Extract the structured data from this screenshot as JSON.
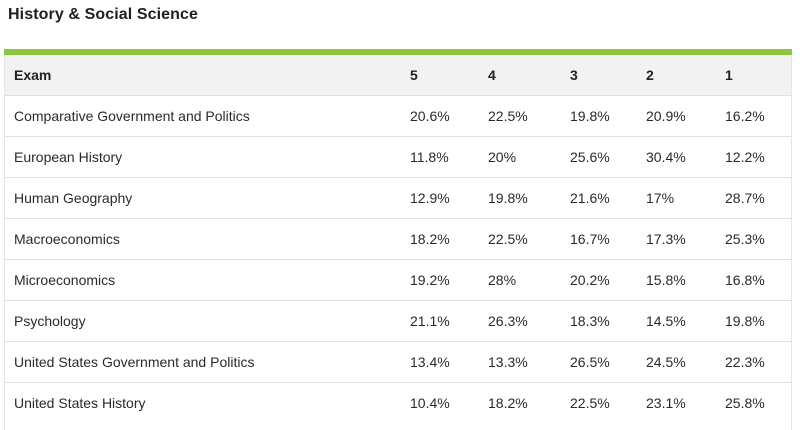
{
  "section": {
    "title": "History & Social Science",
    "accent_color": "#8dc63f"
  },
  "table": {
    "headers": [
      "Exam",
      "5",
      "4",
      "3",
      "2",
      "1"
    ],
    "rows": [
      {
        "exam": "Comparative Government and Politics",
        "s5": "20.6%",
        "s4": "22.5%",
        "s3": "19.8%",
        "s2": "20.9%",
        "s1": "16.2%"
      },
      {
        "exam": "European History",
        "s5": "11.8%",
        "s4": "20%",
        "s3": "25.6%",
        "s2": "30.4%",
        "s1": "12.2%"
      },
      {
        "exam": "Human Geography",
        "s5": "12.9%",
        "s4": "19.8%",
        "s3": "21.6%",
        "s2": "17%",
        "s1": "28.7%"
      },
      {
        "exam": "Macroeconomics",
        "s5": "18.2%",
        "s4": "22.5%",
        "s3": "16.7%",
        "s2": "17.3%",
        "s1": "25.3%"
      },
      {
        "exam": "Microeconomics",
        "s5": "19.2%",
        "s4": "28%",
        "s3": "20.2%",
        "s2": "15.8%",
        "s1": "16.8%"
      },
      {
        "exam": "Psychology",
        "s5": "21.1%",
        "s4": "26.3%",
        "s3": "18.3%",
        "s2": "14.5%",
        "s1": "19.8%"
      },
      {
        "exam": "United States Government and Politics",
        "s5": "13.4%",
        "s4": "13.3%",
        "s3": "26.5%",
        "s2": "24.5%",
        "s1": "22.3%"
      },
      {
        "exam": "United States History",
        "s5": "10.4%",
        "s4": "18.2%",
        "s3": "22.5%",
        "s2": "23.1%",
        "s1": "25.8%"
      }
    ]
  }
}
